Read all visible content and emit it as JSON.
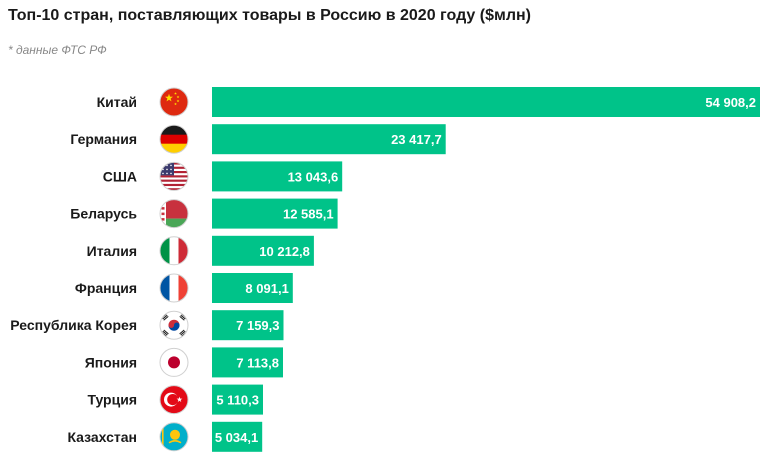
{
  "title": "Топ-10 стран, поставляющих товары в Россию в 2020 году ($млн)",
  "note": "* данные ФТС РФ",
  "colors": {
    "bar": "#00c389",
    "label": "#1a1a1a",
    "value_text": "#ffffff"
  },
  "chart_data": {
    "type": "bar",
    "orientation": "horizontal",
    "title": "Топ-10 стран, поставляющих товары в Россию в 2020 году ($млн)",
    "xlabel": "",
    "ylabel": "",
    "grid": false,
    "legend": "none",
    "xlim": [
      0,
      54908.2
    ],
    "categories": [
      "Китай",
      "Германия",
      "США",
      "Беларусь",
      "Италия",
      "Франция",
      "Республика Корея",
      "Япония",
      "Турция",
      "Казахстан"
    ],
    "values": [
      54908.2,
      23417.7,
      13043.6,
      12585.1,
      10212.8,
      8091.1,
      7159.3,
      7113.8,
      5110.3,
      5034.1
    ],
    "value_labels": [
      "54 908,2",
      "23 417,7",
      "13 043,6",
      "12 585,1",
      "10 212,8",
      "8 091,1",
      "7 159,3",
      "7 113,8",
      "5 110,3",
      "5 034,1"
    ],
    "flag_icons": [
      "china-flag-icon",
      "germany-flag-icon",
      "usa-flag-icon",
      "belarus-flag-icon",
      "italy-flag-icon",
      "france-flag-icon",
      "south-korea-flag-icon",
      "japan-flag-icon",
      "turkey-flag-icon",
      "kazakhstan-flag-icon"
    ]
  }
}
